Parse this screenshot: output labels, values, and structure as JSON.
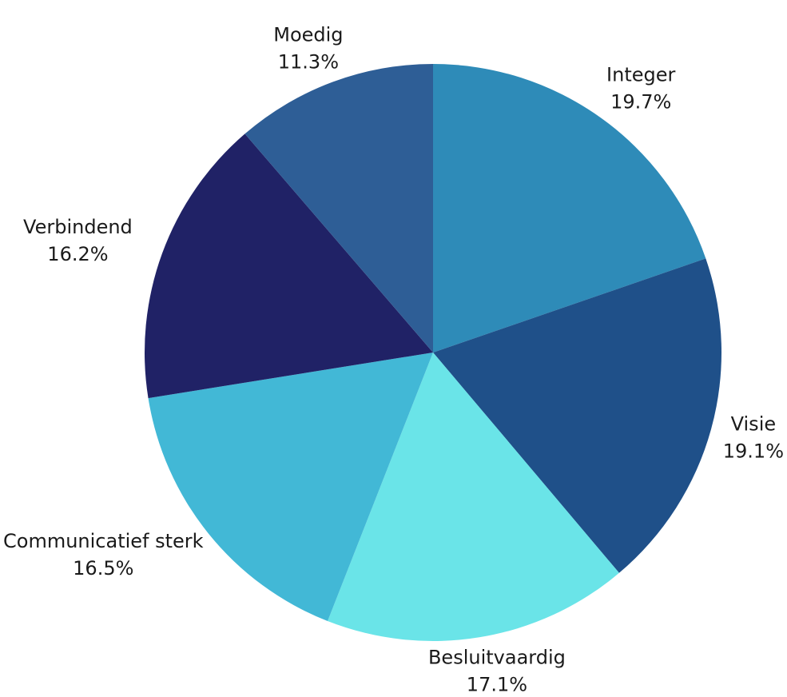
{
  "chart_data": {
    "type": "pie",
    "categories": [
      "Integer",
      "Visie",
      "Besluitvaardig",
      "Communicatief sterk",
      "Verbindend",
      "Moedig"
    ],
    "values": [
      19.7,
      19.1,
      17.1,
      16.5,
      16.2,
      11.3
    ],
    "value_labels": [
      "19.7%",
      "19.1%",
      "17.1%",
      "16.5%",
      "16.2%",
      "11.3%"
    ],
    "colors": [
      "#2e8bb8",
      "#1f5089",
      "#6ae4e8",
      "#42b8d6",
      "#202266",
      "#2e5e96"
    ]
  }
}
